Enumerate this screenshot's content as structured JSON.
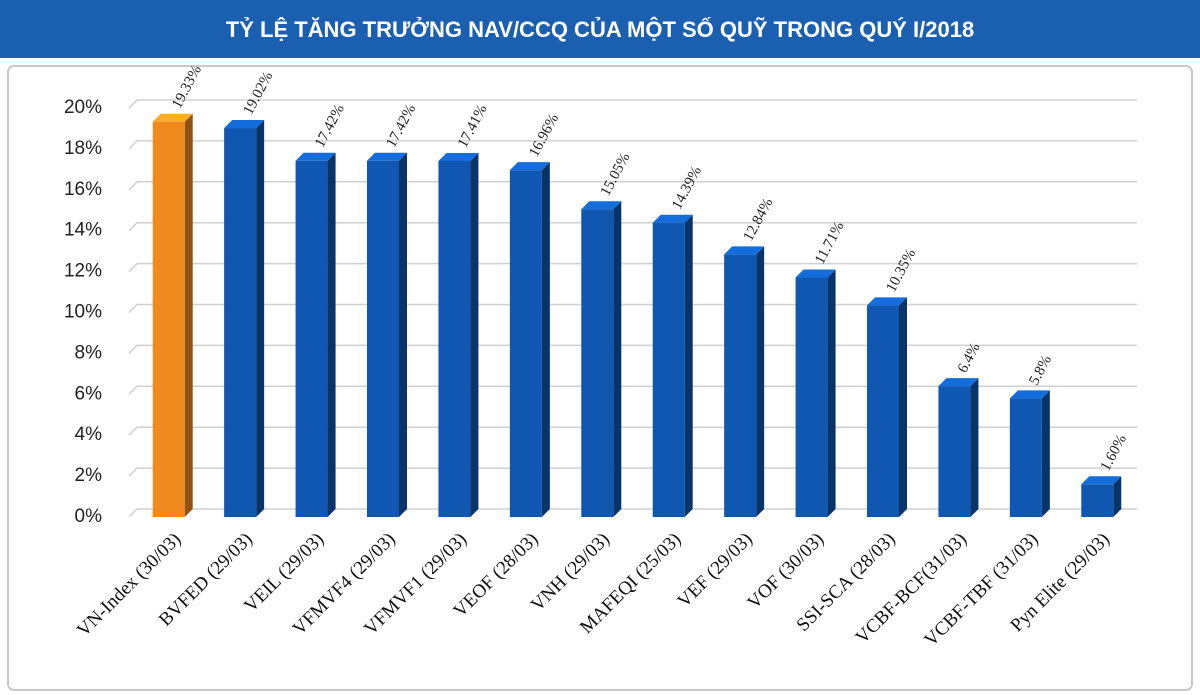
{
  "chart_data": {
    "type": "bar",
    "title": "TỶ LỆ TĂNG TRƯỞNG NAV/CCQ CỦA MỘT SỐ QUỸ TRONG QUÝ I/2018",
    "categories": [
      "VN-Index (30/03)",
      "BVFED (29/03)",
      "VEIL (29/03)",
      "VFMVF4 (29/03)",
      "VFMVF1 (29/03)",
      "VEOF (28/03)",
      "VNH (29/03)",
      "MAFEQI (25/03)",
      "VEF (29/03)",
      "VOF (30/03)",
      "SSI-SCA (28/03)",
      "VCBF-BCF(31/03)",
      "VCBF-TBF (31/03)",
      "Pyn Elite (29/03)"
    ],
    "values": [
      19.33,
      19.02,
      17.42,
      17.42,
      17.41,
      16.96,
      15.05,
      14.39,
      12.84,
      11.71,
      10.35,
      6.4,
      5.8,
      1.6
    ],
    "value_labels": [
      "19.33%",
      "19.02%",
      "17.42%",
      "17.42%",
      "17.41%",
      "16.96%",
      "15.05%",
      "14.39%",
      "12.84%",
      "11.71%",
      "10.35%",
      "6.4%",
      "5.8%",
      "1.60%"
    ],
    "colors": [
      "#f08a1e",
      "#0f57b0",
      "#0f57b0",
      "#0f57b0",
      "#0f57b0",
      "#0f57b0",
      "#0f57b0",
      "#0f57b0",
      "#0f57b0",
      "#0f57b0",
      "#0f57b0",
      "#0f57b0",
      "#0f57b0",
      "#0f57b0"
    ],
    "ylim": [
      0,
      20
    ],
    "yticks": [
      {
        "value": 0,
        "label": "0%"
      },
      {
        "value": 2,
        "label": "2%"
      },
      {
        "value": 4,
        "label": "4%"
      },
      {
        "value": 6,
        "label": "6%"
      },
      {
        "value": 8,
        "label": "8%"
      },
      {
        "value": 10,
        "label": "10%"
      },
      {
        "value": 12,
        "label": "12%"
      },
      {
        "value": 14,
        "label": "14%"
      },
      {
        "value": 16,
        "label": "16%"
      },
      {
        "value": 18,
        "label": "18%"
      },
      {
        "value": 20,
        "label": "20%"
      }
    ],
    "grid": true
  }
}
